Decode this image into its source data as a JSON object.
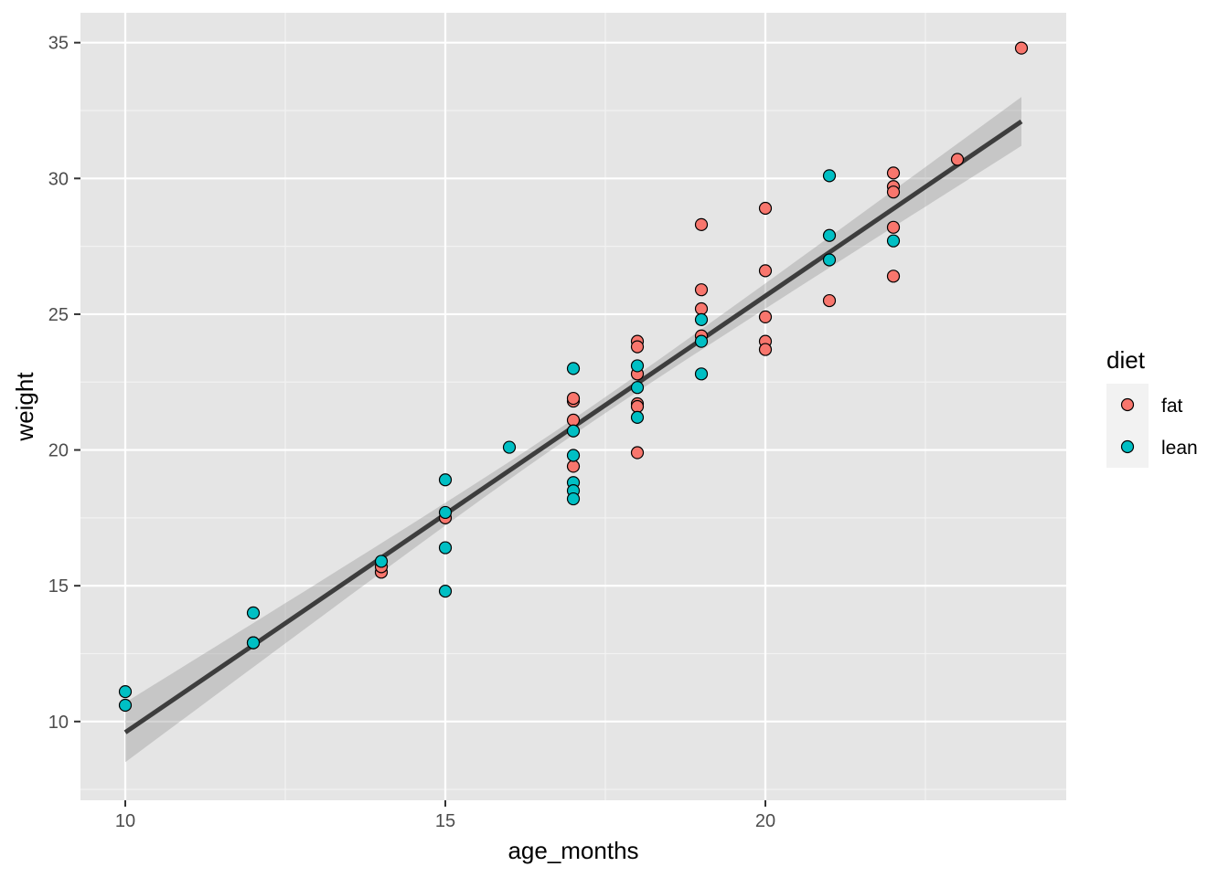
{
  "chart_data": {
    "type": "scatter",
    "title": "",
    "xlabel": "age_months",
    "ylabel": "weight",
    "xlim": [
      9.3,
      24.7
    ],
    "ylim": [
      7.1,
      36.1
    ],
    "x_ticks": [
      10,
      15,
      20
    ],
    "y_ticks": [
      10,
      15,
      20,
      25,
      30,
      35
    ],
    "grid": true,
    "legend": {
      "title": "diet",
      "placement": "right",
      "entries": [
        "fat",
        "lean"
      ]
    },
    "colors": {
      "fat": "#F8766D",
      "lean": "#00BFC4",
      "trend": "#3d3d3d",
      "band": "#999999",
      "panel": "#e5e5e5"
    },
    "series": [
      {
        "name": "fat",
        "points": [
          [
            12,
            12.9
          ],
          [
            14,
            15.5
          ],
          [
            14,
            15.7
          ],
          [
            15,
            17.5
          ],
          [
            17,
            21.8
          ],
          [
            17,
            21.9
          ],
          [
            17,
            21.1
          ],
          [
            17,
            19.4
          ],
          [
            18,
            24.0
          ],
          [
            18,
            23.8
          ],
          [
            18,
            22.8
          ],
          [
            18,
            21.7
          ],
          [
            18,
            21.6
          ],
          [
            18,
            19.9
          ],
          [
            19,
            28.3
          ],
          [
            19,
            25.9
          ],
          [
            19,
            25.2
          ],
          [
            19,
            24.2
          ],
          [
            20,
            28.9
          ],
          [
            20,
            26.6
          ],
          [
            20,
            24.9
          ],
          [
            20,
            24.0
          ],
          [
            20,
            23.7
          ],
          [
            21,
            25.5
          ],
          [
            22,
            30.2
          ],
          [
            22,
            29.7
          ],
          [
            22,
            29.5
          ],
          [
            22,
            28.2
          ],
          [
            22,
            26.4
          ],
          [
            23,
            30.7
          ],
          [
            24,
            34.8
          ]
        ]
      },
      {
        "name": "lean",
        "points": [
          [
            10,
            11.1
          ],
          [
            10,
            10.6
          ],
          [
            12,
            14.0
          ],
          [
            12,
            12.9
          ],
          [
            14,
            15.9
          ],
          [
            15,
            18.9
          ],
          [
            15,
            17.7
          ],
          [
            15,
            16.4
          ],
          [
            15,
            14.8
          ],
          [
            16,
            20.1
          ],
          [
            17,
            23.0
          ],
          [
            17,
            20.7
          ],
          [
            17,
            19.8
          ],
          [
            17,
            18.8
          ],
          [
            17,
            18.5
          ],
          [
            17,
            18.2
          ],
          [
            18,
            23.1
          ],
          [
            18,
            22.3
          ],
          [
            18,
            21.2
          ],
          [
            19,
            24.8
          ],
          [
            19,
            24.0
          ],
          [
            19,
            22.8
          ],
          [
            21,
            30.1
          ],
          [
            21,
            27.9
          ],
          [
            21,
            27.0
          ],
          [
            22,
            27.7
          ]
        ]
      }
    ],
    "trend": {
      "method": "linear",
      "x": [
        10,
        24
      ],
      "y": [
        9.6,
        32.1
      ],
      "band_lower": [
        8.5,
        31.2
      ],
      "band_upper": [
        10.7,
        33.0
      ]
    }
  }
}
